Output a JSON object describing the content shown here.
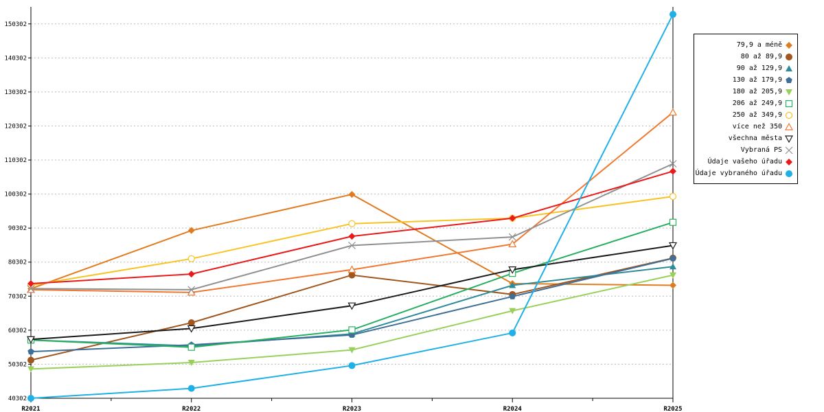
{
  "chart_data": {
    "type": "line",
    "categories": [
      "R2021",
      "R2022",
      "R2023",
      "R2024",
      "R2025"
    ],
    "y_ticks": [
      "40302",
      "50302",
      "60302",
      "70302",
      "80302",
      "90302",
      "100302",
      "110302",
      "120302",
      "130302",
      "140302",
      "150302"
    ],
    "ylim": [
      40302,
      155302
    ],
    "grid": true,
    "legend_position": "right",
    "series": [
      {
        "name": "79,9 a méně",
        "color": "#e07b20",
        "marker": "diamond",
        "values": [
          72500,
          89600,
          100200,
          74000,
          73500
        ]
      },
      {
        "name": "80 až 89,9",
        "color": "#a0561e",
        "marker": "circle",
        "values": [
          51500,
          62500,
          76500,
          70800,
          81500
        ]
      },
      {
        "name": "90 až 129,9",
        "color": "#2e8b9a",
        "marker": "triangle-up",
        "values": [
          57400,
          55700,
          59200,
          73500,
          79000
        ]
      },
      {
        "name": "130 až 179,9",
        "color": "#3f6e96",
        "marker": "pentagon",
        "values": [
          54000,
          56000,
          58900,
          70200,
          81400
        ]
      },
      {
        "name": "180 až 205,9",
        "color": "#99d05a",
        "marker": "triangle-down",
        "values": [
          48900,
          50800,
          54500,
          66000,
          76500
        ]
      },
      {
        "name": "206 až 249,9",
        "color": "#27ae60",
        "marker": "square-open",
        "values": [
          57400,
          55300,
          60400,
          77000,
          92000
        ]
      },
      {
        "name": "250 až 349,9",
        "color": "#f7c325",
        "marker": "circle-open",
        "values": [
          73500,
          81300,
          91600,
          93200,
          99600
        ]
      },
      {
        "name": "více než 350",
        "color": "#f07830",
        "marker": "triangle-up-open",
        "values": [
          72200,
          71400,
          78100,
          85600,
          124300
        ]
      },
      {
        "name": "všechna města",
        "color": "#1a1a1a",
        "marker": "triangle-down-open",
        "values": [
          57600,
          60800,
          67500,
          78100,
          85200
        ]
      },
      {
        "name": "Vybraná PS",
        "color": "#909090",
        "marker": "x",
        "values": [
          72500,
          72200,
          85200,
          87700,
          109200
        ]
      },
      {
        "name": "Údaje vašeho úřadu",
        "color": "#e81a1a",
        "marker": "diamond",
        "values": [
          74000,
          76800,
          87900,
          93200,
          107000
        ]
      },
      {
        "name": "Údaje vybraného úřadu",
        "color": "#1eb0e6",
        "marker": "circle",
        "values": [
          40302,
          43200,
          49900,
          59500,
          153100
        ]
      }
    ]
  }
}
